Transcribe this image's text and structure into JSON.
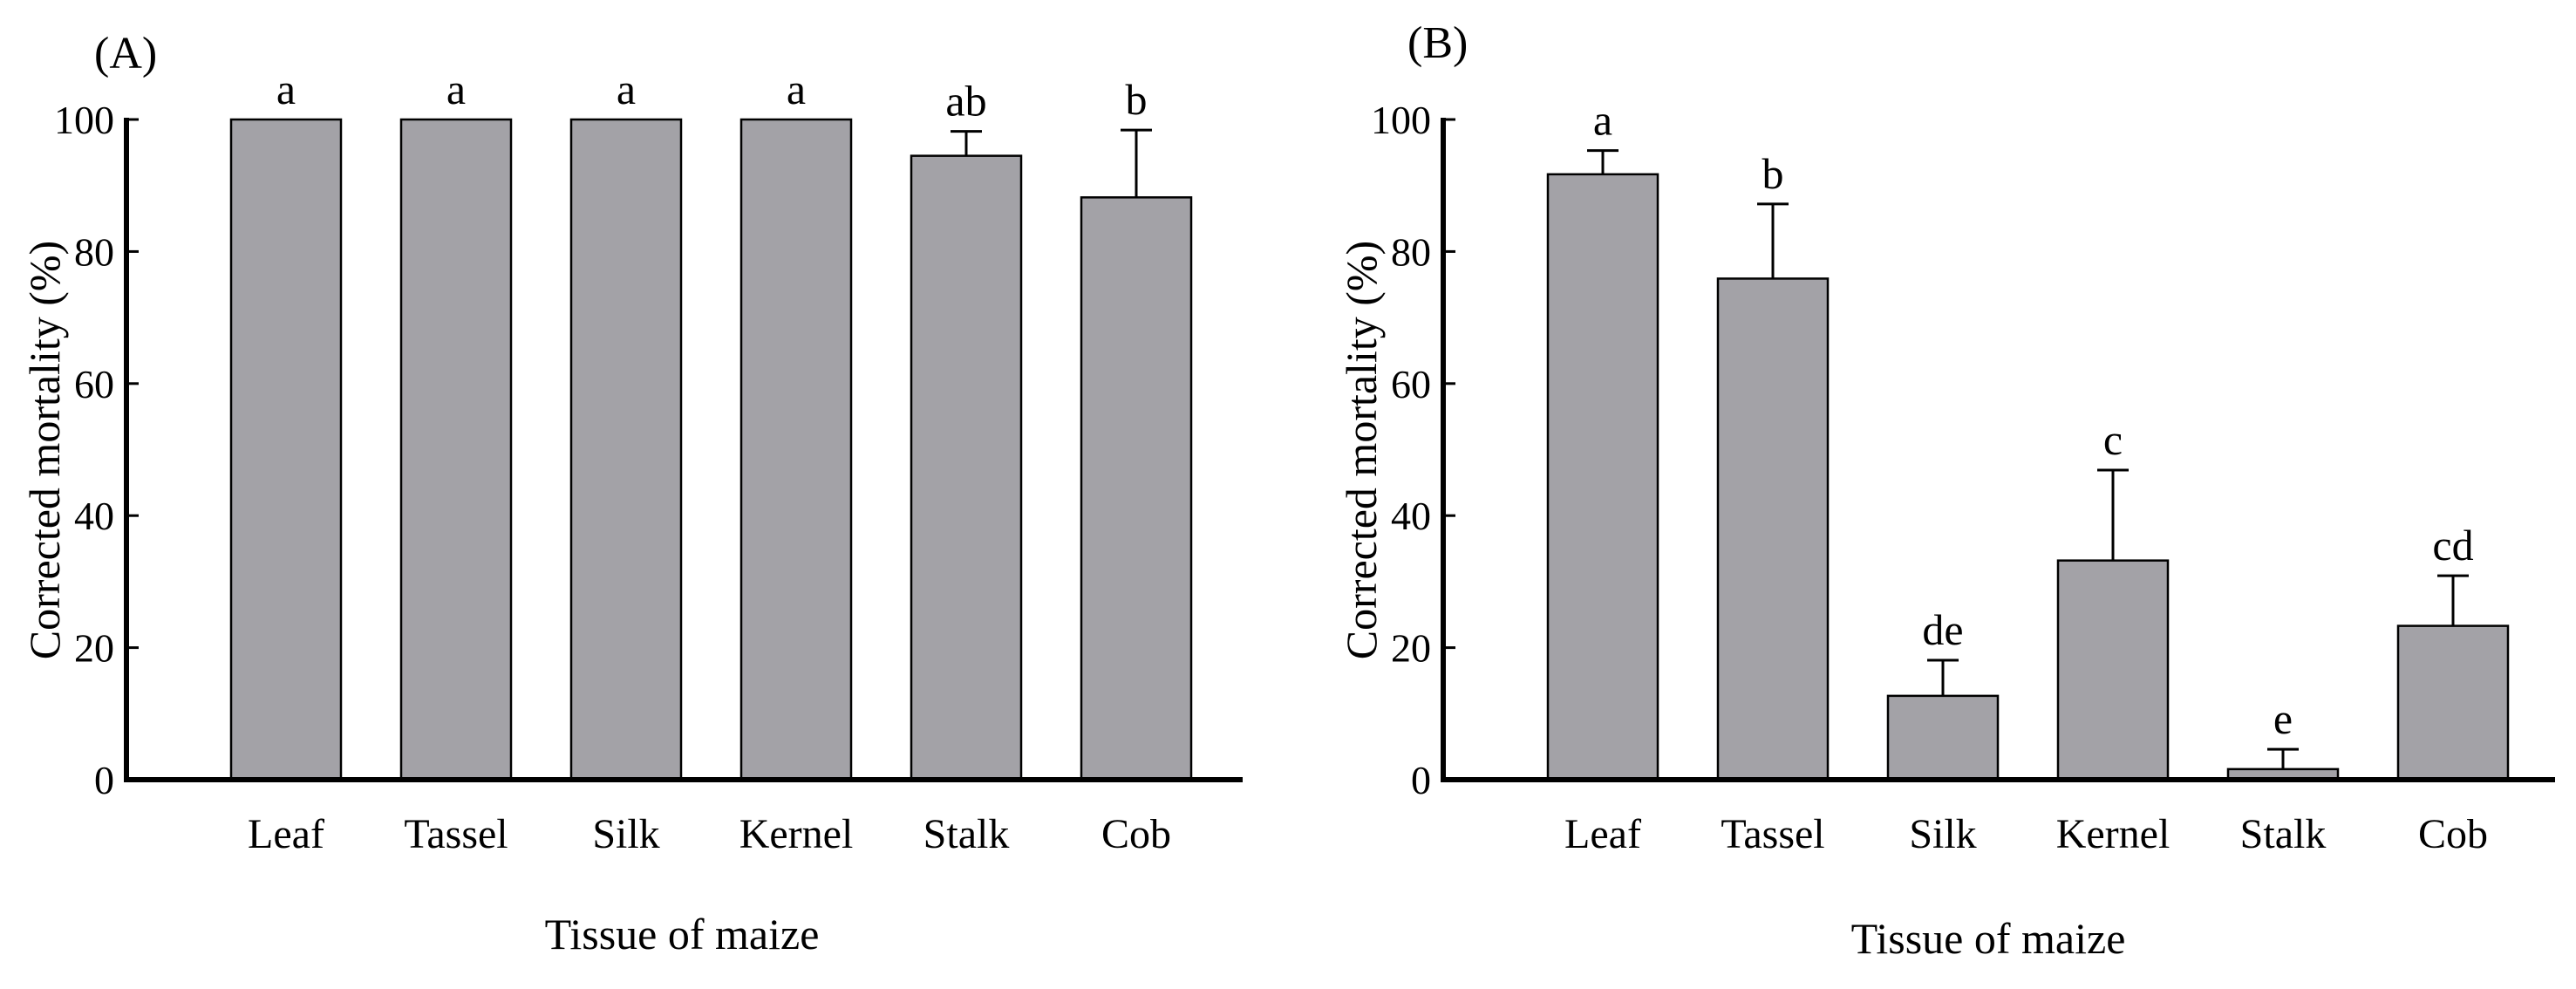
{
  "chart_data": [
    {
      "panel": "(A)",
      "type": "bar",
      "categories": [
        "Leaf",
        "Tassel",
        "Silk",
        "Kernel",
        "Stalk",
        "Cob"
      ],
      "values": [
        100,
        100,
        100,
        100,
        94.5,
        88.2
      ],
      "errors": [
        0,
        0,
        0,
        0,
        3.7,
        10.2
      ],
      "significance": [
        "a",
        "a",
        "a",
        "a",
        "ab",
        "b"
      ],
      "xlabel": "Tissue of maize",
      "ylabel": "Corrected mortality (%)",
      "ylim": [
        0,
        100
      ],
      "yticks": [
        0,
        20,
        40,
        60,
        80,
        100
      ]
    },
    {
      "panel": "(B)",
      "type": "bar",
      "categories": [
        "Leaf",
        "Tassel",
        "Silk",
        "Kernel",
        "Stalk",
        "Cob"
      ],
      "values": [
        91.7,
        75.9,
        12.7,
        33.2,
        1.6,
        23.3
      ],
      "errors": [
        3.6,
        11.3,
        5.4,
        13.7,
        3.0,
        7.6
      ],
      "significance": [
        "a",
        "b",
        "de",
        "c",
        "e",
        "cd"
      ],
      "xlabel": "Tissue of maize",
      "ylabel": "Corrected mortality (%)",
      "ylim": [
        0,
        100
      ],
      "yticks": [
        0,
        20,
        40,
        60,
        80,
        100
      ]
    }
  ]
}
